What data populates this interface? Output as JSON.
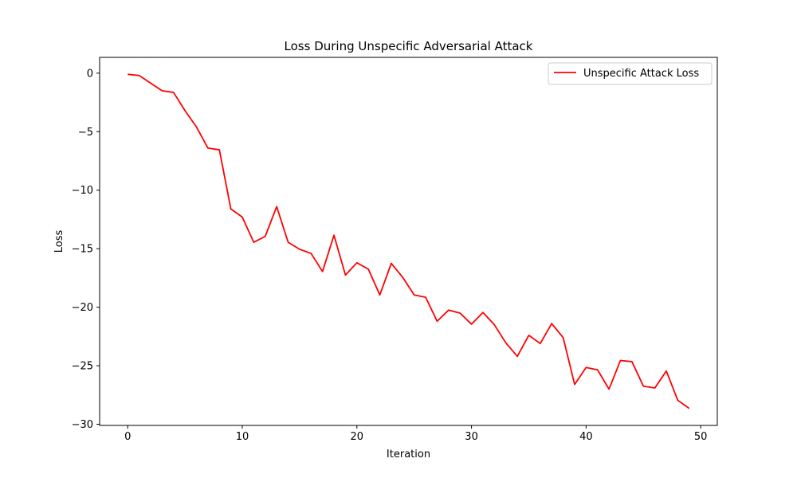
{
  "chart_data": {
    "type": "line",
    "title": "Loss During Unspecific Adversarial Attack",
    "xlabel": "Iteration",
    "ylabel": "Loss",
    "xlim": [
      -2.45,
      51.45
    ],
    "ylim": [
      -30.1,
      1.35
    ],
    "xticks": [
      0,
      10,
      20,
      30,
      40,
      50
    ],
    "yticks": [
      0,
      -5,
      -10,
      -15,
      -20,
      -25,
      -30
    ],
    "xtick_labels": [
      "0",
      "10",
      "20",
      "30",
      "40",
      "50"
    ],
    "ytick_labels": [
      "0",
      "−5",
      "−10",
      "−15",
      "−20",
      "−25",
      "−30"
    ],
    "grid": false,
    "legend_position": "upper right",
    "series": [
      {
        "name": "Unspecific Attack Loss",
        "color": "#ff0000",
        "x": [
          0,
          1,
          2,
          3,
          4,
          5,
          6,
          7,
          8,
          9,
          10,
          11,
          12,
          13,
          14,
          15,
          16,
          17,
          18,
          19,
          20,
          21,
          22,
          23,
          24,
          25,
          26,
          27,
          28,
          29,
          30,
          31,
          32,
          33,
          34,
          35,
          36,
          37,
          38,
          39,
          40,
          41,
          42,
          43,
          44,
          45,
          46,
          47,
          48,
          49
        ],
        "values": [
          -0.1,
          -0.2,
          -0.85,
          -1.5,
          -1.65,
          -3.2,
          -4.6,
          -6.4,
          -6.55,
          -11.6,
          -12.3,
          -14.45,
          -13.95,
          -11.4,
          -14.45,
          -15.05,
          -15.4,
          -16.95,
          -13.85,
          -17.25,
          -16.2,
          -16.75,
          -18.95,
          -16.25,
          -17.45,
          -18.95,
          -19.15,
          -21.2,
          -20.25,
          -20.5,
          -21.45,
          -20.45,
          -21.5,
          -23.05,
          -24.2,
          -22.4,
          -23.1,
          -21.4,
          -22.6,
          -26.6,
          -25.15,
          -25.35,
          -27.0,
          -24.55,
          -24.65,
          -26.75,
          -26.9,
          -25.45,
          -27.95,
          -28.65
        ]
      }
    ]
  }
}
